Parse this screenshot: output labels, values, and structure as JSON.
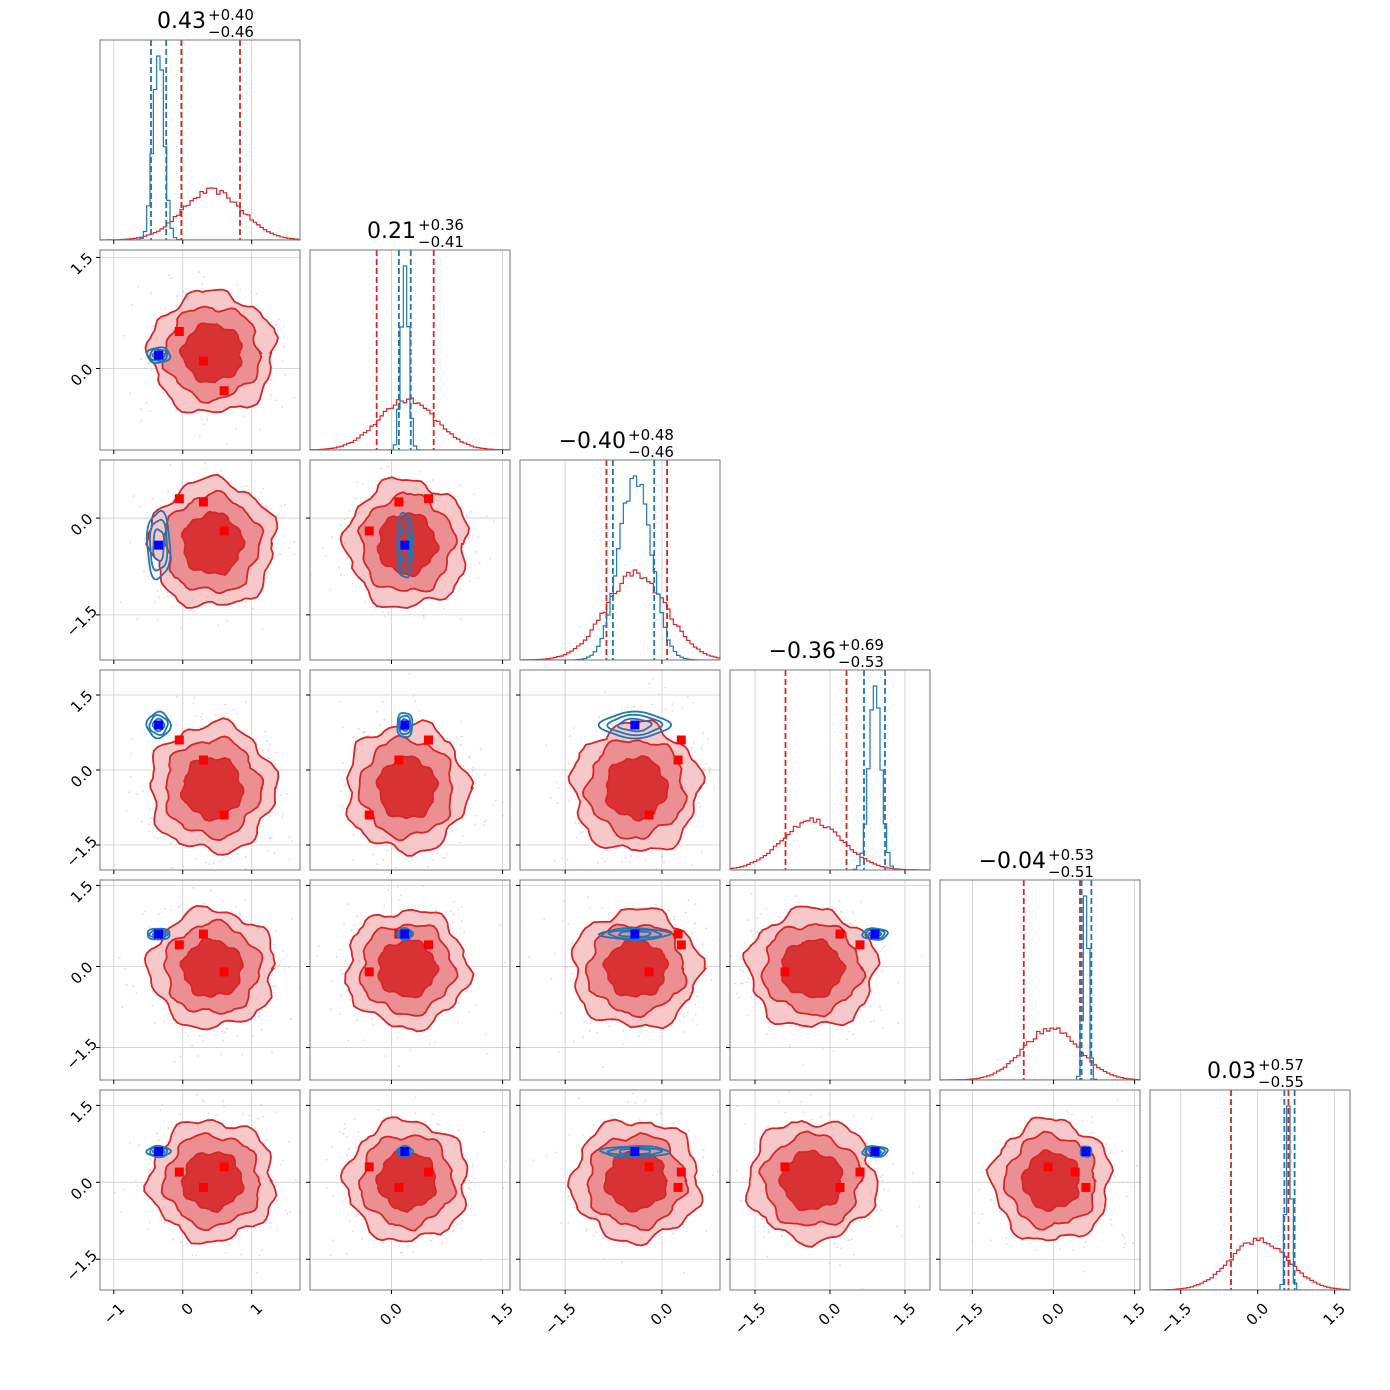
{
  "chart_data": {
    "type": "corner",
    "parameters": 6,
    "titles": [
      {
        "median": "0.43",
        "plus": "+0.40",
        "minus": "−0.46"
      },
      {
        "median": "0.21",
        "plus": "+0.36",
        "minus": "−0.41"
      },
      {
        "median": "−0.40",
        "plus": "+0.48",
        "minus": "−0.46"
      },
      {
        "median": "−0.36",
        "plus": "+0.69",
        "minus": "−0.53"
      },
      {
        "median": "−0.04",
        "plus": "+0.53",
        "minus": "−0.51"
      },
      {
        "median": "0.03",
        "plus": "+0.57",
        "minus": "−0.55"
      }
    ],
    "ranges": [
      [
        -1.2,
        1.7
      ],
      [
        -1.1,
        1.6
      ],
      [
        -2.2,
        0.9
      ],
      [
        -2.0,
        2.0
      ],
      [
        -2.1,
        1.6
      ],
      [
        -2.1,
        1.8
      ]
    ],
    "x_ticks": [
      {
        "values": [
          -1,
          0,
          1
        ],
        "labels": [
          "−1",
          "0",
          "1"
        ]
      },
      {
        "values": [
          0.0,
          1.5
        ],
        "labels": [
          "0.0",
          "1.5"
        ]
      },
      {
        "values": [
          -1.5,
          0.0
        ],
        "labels": [
          "−1.5",
          "0.0"
        ]
      },
      {
        "values": [
          -1.5,
          0.0,
          1.5
        ],
        "labels": [
          "−1.5",
          "0.0",
          "1.5"
        ]
      },
      {
        "values": [
          -1.5,
          0.0,
          1.5
        ],
        "labels": [
          "−1.5",
          "0.0",
          "1.5"
        ]
      },
      {
        "values": [
          -1.5,
          0.0,
          1.5
        ],
        "labels": [
          "−1.5",
          "0.0",
          "1.5"
        ]
      }
    ],
    "y_ticks": [
      null,
      {
        "values": [
          0.0,
          1.5
        ],
        "labels": [
          "0.0",
          "1.5"
        ]
      },
      {
        "values": [
          -1.5,
          0.0
        ],
        "labels": [
          "−1.5",
          "0.0"
        ]
      },
      {
        "values": [
          -1.5,
          0.0,
          1.5
        ],
        "labels": [
          "−1.5",
          "0.0",
          "1.5"
        ]
      },
      {
        "values": [
          -1.5,
          0.0,
          1.5
        ],
        "labels": [
          "−1.5",
          "0.0",
          "1.5"
        ]
      },
      {
        "values": [
          -1.5,
          0.0,
          1.5
        ],
        "labels": [
          "−1.5",
          "0.0",
          "1.5"
        ]
      }
    ],
    "series": [
      {
        "color": "#d62728",
        "fill": "#e34a4e",
        "means": [
          0.43,
          0.21,
          -0.4,
          -0.36,
          -0.04,
          0.03
        ],
        "sds": [
          0.43,
          0.39,
          0.47,
          0.61,
          0.52,
          0.56
        ],
        "quantile_lines": [
          [
            -0.02,
            0.83
          ],
          [
            -0.2,
            0.57
          ],
          [
            -0.86,
            0.08
          ],
          [
            -0.89,
            0.33
          ],
          [
            -0.55,
            0.49
          ],
          [
            -0.52,
            0.6
          ]
        ]
      },
      {
        "color": "#1f77b4",
        "means": [
          -0.35,
          0.18,
          -0.42,
          0.9,
          0.6,
          0.6
        ],
        "sds": [
          0.08,
          0.05,
          0.25,
          0.12,
          0.05,
          0.05
        ],
        "quantile_lines": [
          [
            -0.46,
            -0.24
          ],
          [
            0.1,
            0.26
          ],
          [
            -0.76,
            -0.12
          ],
          [
            0.68,
            1.1
          ],
          [
            0.52,
            0.7
          ],
          [
            0.52,
            0.72
          ]
        ]
      }
    ],
    "markers": [
      {
        "color": "#ff0000",
        "points": [
          [
            -0.05,
            0.5,
            0.3,
            0.6,
            0.4,
            0.2
          ],
          [
            0.3,
            0.1,
            0.25,
            0.2,
            0.6,
            -0.1
          ],
          [
            0.6,
            -0.3,
            -0.2,
            -0.9,
            -0.1,
            0.3
          ]
        ]
      },
      {
        "color": "#0000ff",
        "points": [
          [
            -0.35,
            0.18,
            -0.42,
            0.9,
            0.6,
            0.6
          ]
        ]
      }
    ],
    "grid": true,
    "grid_color": "#cccccc"
  }
}
